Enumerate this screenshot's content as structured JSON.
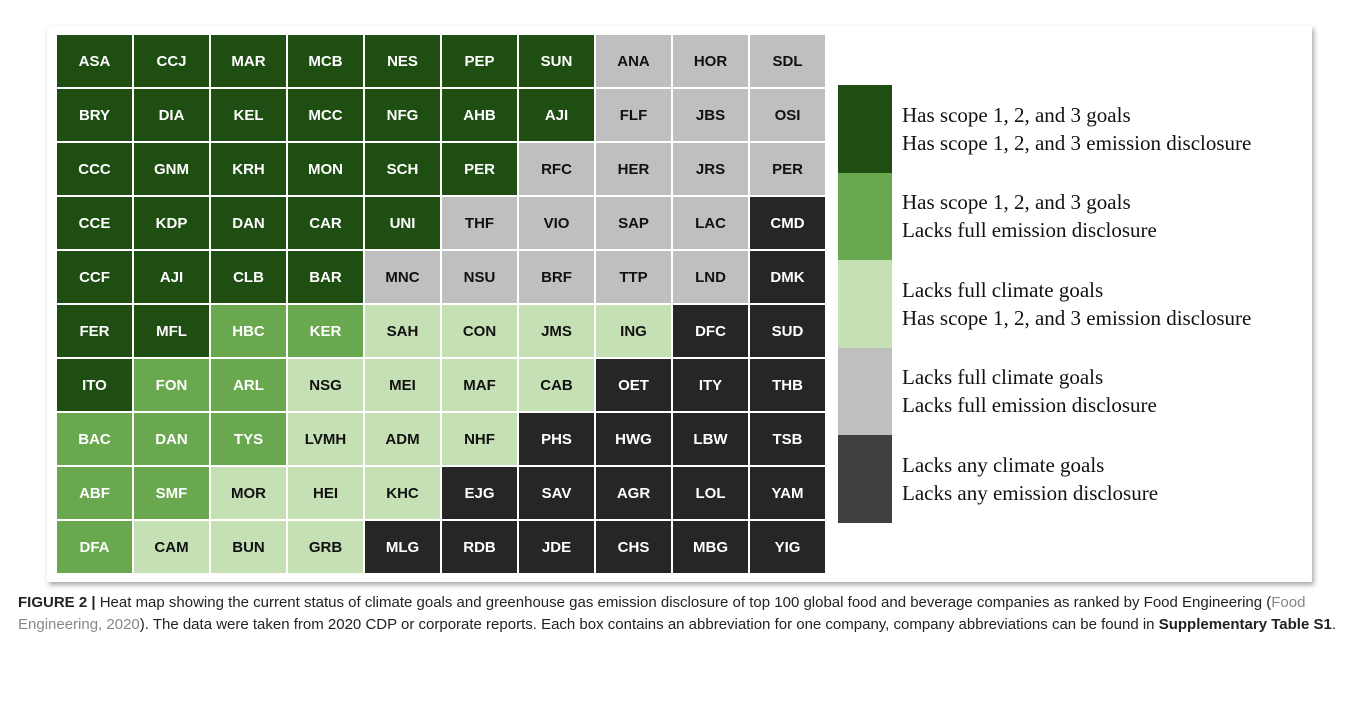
{
  "figure": {
    "grid": {
      "rows": [
        [
          [
            "ASA",
            "#1f4e13"
          ],
          [
            "CCJ",
            "#1f4e13"
          ],
          [
            "MAR",
            "#1f4e13"
          ],
          [
            "MCB",
            "#1f4e13"
          ],
          [
            "NES",
            "#1f4e13"
          ],
          [
            "PEP",
            "#1f4e13"
          ],
          [
            "SUN",
            "#1f4e13"
          ],
          [
            "ANA",
            "#bfbfbf"
          ],
          [
            "HOR",
            "#bfbfbf"
          ],
          [
            "SDL",
            "#bfbfbf"
          ]
        ],
        [
          [
            "BRY",
            "#1f4e13"
          ],
          [
            "DIA",
            "#1f4e13"
          ],
          [
            "KEL",
            "#1f4e13"
          ],
          [
            "MCC",
            "#1f4e13"
          ],
          [
            "NFG",
            "#1f4e13"
          ],
          [
            "AHB",
            "#1f4e13"
          ],
          [
            "AJI",
            "#1f4e13"
          ],
          [
            "FLF",
            "#bfbfbf"
          ],
          [
            "JBS",
            "#bfbfbf"
          ],
          [
            "OSI",
            "#bfbfbf"
          ]
        ],
        [
          [
            "CCC",
            "#1f4e13"
          ],
          [
            "GNM",
            "#1f4e13"
          ],
          [
            "KRH",
            "#1f4e13"
          ],
          [
            "MON",
            "#1f4e13"
          ],
          [
            "SCH",
            "#1f4e13"
          ],
          [
            "PER",
            "#1f4e13"
          ],
          [
            "RFC",
            "#bfbfbf"
          ],
          [
            "HER",
            "#bfbfbf"
          ],
          [
            "JRS",
            "#bfbfbf"
          ],
          [
            "PER",
            "#bfbfbf"
          ]
        ],
        [
          [
            "CCE",
            "#1f4e13"
          ],
          [
            "KDP",
            "#1f4e13"
          ],
          [
            "DAN",
            "#1f4e13"
          ],
          [
            "CAR",
            "#1f4e13"
          ],
          [
            "UNI",
            "#1f4e13"
          ],
          [
            "THF",
            "#bfbfbf"
          ],
          [
            "VIO",
            "#bfbfbf"
          ],
          [
            "SAP",
            "#bfbfbf"
          ],
          [
            "LAC",
            "#bfbfbf"
          ],
          [
            "CMD",
            "#262626"
          ]
        ],
        [
          [
            "CCF",
            "#1f4e13"
          ],
          [
            "AJI",
            "#1f4e13"
          ],
          [
            "CLB",
            "#1f4e13"
          ],
          [
            "BAR",
            "#1f4e13"
          ],
          [
            "MNC",
            "#bfbfbf"
          ],
          [
            "NSU",
            "#bfbfbf"
          ],
          [
            "BRF",
            "#bfbfbf"
          ],
          [
            "TTP",
            "#bfbfbf"
          ],
          [
            "LND",
            "#bfbfbf"
          ],
          [
            "DMK",
            "#262626"
          ]
        ],
        [
          [
            "FER",
            "#1f4e13"
          ],
          [
            "MFL",
            "#1f4e13"
          ],
          [
            "HBC",
            "#6aa84f"
          ],
          [
            "KER",
            "#6aa84f"
          ],
          [
            "SAH",
            "#c5e0b4"
          ],
          [
            "CON",
            "#c5e0b4"
          ],
          [
            "JMS",
            "#c5e0b4"
          ],
          [
            "ING",
            "#c5e0b4"
          ],
          [
            "DFC",
            "#262626"
          ],
          [
            "SUD",
            "#262626"
          ]
        ],
        [
          [
            "ITO",
            "#1f4e13"
          ],
          [
            "FON",
            "#6aa84f"
          ],
          [
            "ARL",
            "#6aa84f"
          ],
          [
            "NSG",
            "#c5e0b4"
          ],
          [
            "MEI",
            "#c5e0b4"
          ],
          [
            "MAF",
            "#c5e0b4"
          ],
          [
            "CAB",
            "#c5e0b4"
          ],
          [
            "OET",
            "#262626"
          ],
          [
            "ITY",
            "#262626"
          ],
          [
            "THB",
            "#262626"
          ]
        ],
        [
          [
            "BAC",
            "#6aa84f"
          ],
          [
            "DAN",
            "#6aa84f"
          ],
          [
            "TYS",
            "#6aa84f"
          ],
          [
            "LVMH",
            "#c5e0b4"
          ],
          [
            "ADM",
            "#c5e0b4"
          ],
          [
            "NHF",
            "#c5e0b4"
          ],
          [
            "PHS",
            "#262626"
          ],
          [
            "HWG",
            "#262626"
          ],
          [
            "LBW",
            "#262626"
          ],
          [
            "TSB",
            "#262626"
          ]
        ],
        [
          [
            "ABF",
            "#6aa84f"
          ],
          [
            "SMF",
            "#6aa84f"
          ],
          [
            "MOR",
            "#c5e0b4"
          ],
          [
            "HEI",
            "#c5e0b4"
          ],
          [
            "KHC",
            "#c5e0b4"
          ],
          [
            "EJG",
            "#262626"
          ],
          [
            "SAV",
            "#262626"
          ],
          [
            "AGR",
            "#262626"
          ],
          [
            "LOL",
            "#262626"
          ],
          [
            "YAM",
            "#262626"
          ]
        ],
        [
          [
            "DFA",
            "#6aa84f"
          ],
          [
            "CAM",
            "#c5e0b4"
          ],
          [
            "BUN",
            "#c5e0b4"
          ],
          [
            "GRB",
            "#c5e0b4"
          ],
          [
            "MLG",
            "#262626"
          ],
          [
            "RDB",
            "#262626"
          ],
          [
            "JDE",
            "#262626"
          ],
          [
            "CHS",
            "#262626"
          ],
          [
            "MBG",
            "#262626"
          ],
          [
            "YIG",
            "#262626"
          ]
        ]
      ]
    },
    "legend": [
      {
        "color": "#1f4e13",
        "lines": [
          "Has scope 1, 2, and 3 goals",
          "Has scope 1, 2, and 3 emission disclosure"
        ]
      },
      {
        "color": "#6aa84f",
        "lines": [
          "Has scope 1, 2, and 3 goals",
          "Lacks full emission disclosure"
        ]
      },
      {
        "color": "#c5e0b4",
        "lines": [
          "Lacks full climate goals",
          "Has scope 1, 2, and 3 emission disclosure"
        ]
      },
      {
        "color": "#bfbfbf",
        "lines": [
          "Lacks full climate goals",
          "Lacks full emission disclosure"
        ]
      },
      {
        "color": "#404040",
        "lines": [
          "Lacks any climate goals",
          "Lacks any emission disclosure"
        ]
      }
    ]
  },
  "caption": {
    "label": "FIGURE 2 |",
    "text1": " Heat map showing the current status of climate goals and greenhouse gas emission disclosure of top 100 global food and beverage companies as ranked by Food Engineering (",
    "link": "Food Engineering, 2020",
    "text2": "). The data were taken from 2020 CDP or corporate reports. Each box contains an abbreviation for one company, company abbreviations can be found in ",
    "ref": "Supplementary Table S1",
    "text3": "."
  }
}
